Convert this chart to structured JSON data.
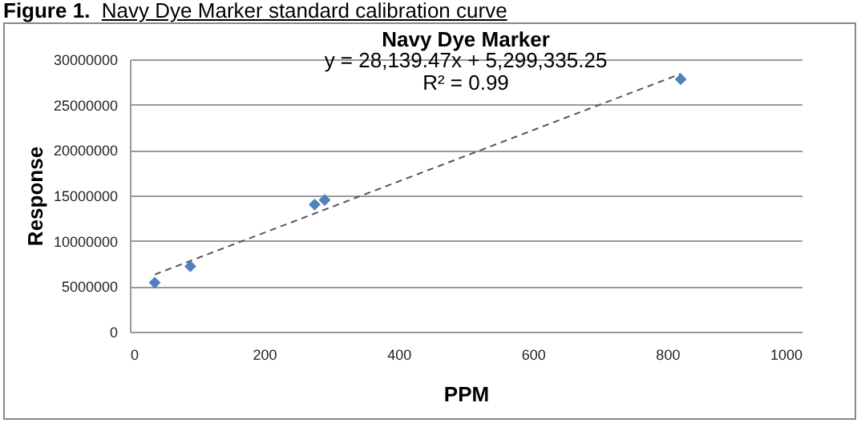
{
  "chart_data": {
    "type": "scatter",
    "title": "Navy Dye Marker",
    "xlabel": "PPM",
    "ylabel": "Response",
    "annotations": [
      "Figure 1.  Navy Dye Marker standard calibration curve",
      "y = 28,139.47x + 5,299,335.25",
      "R² = 0.99"
    ],
    "series": [
      {
        "color": "#4f81bd",
        "marker": "diamond",
        "x": [
          37,
          90,
          275,
          290,
          820
        ],
        "values": [
          5400000,
          7200000,
          14000000,
          14500000,
          27800000
        ]
      },
      {
        "type": "line",
        "color": "#555555",
        "line_style": "dashed",
        "x": [
          37,
          820
        ],
        "values": [
          6300000,
          28400000
        ]
      }
    ],
    "xlim": [
      0,
      1000
    ],
    "xticks": [
      0,
      200,
      400,
      600,
      800,
      1000
    ],
    "ylim": [
      0,
      30000000
    ],
    "yticks": [
      0,
      5000000,
      10000000,
      15000000,
      20000000,
      25000000,
      30000000
    ],
    "grid": "y"
  }
}
